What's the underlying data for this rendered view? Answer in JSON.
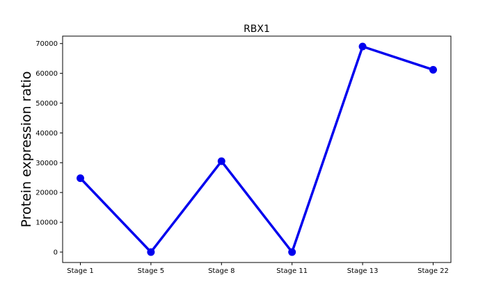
{
  "chart_data": {
    "type": "line",
    "title": "RBX1",
    "xlabel": "",
    "ylabel": "Protein expression ratio",
    "categories": [
      "Stage 1",
      "Stage 5",
      "Stage 8",
      "Stage 11",
      "Stage 13",
      "Stage 22"
    ],
    "series": [
      {
        "values": [
          24800,
          0,
          30500,
          0,
          69000,
          61200
        ]
      }
    ],
    "ylim": [
      -3500,
      72500
    ],
    "yticks": [
      0,
      10000,
      20000,
      30000,
      40000,
      50000,
      60000,
      70000
    ],
    "grid": false,
    "colors": {
      "line": "#0000ee",
      "marker": "#0000ee"
    }
  }
}
